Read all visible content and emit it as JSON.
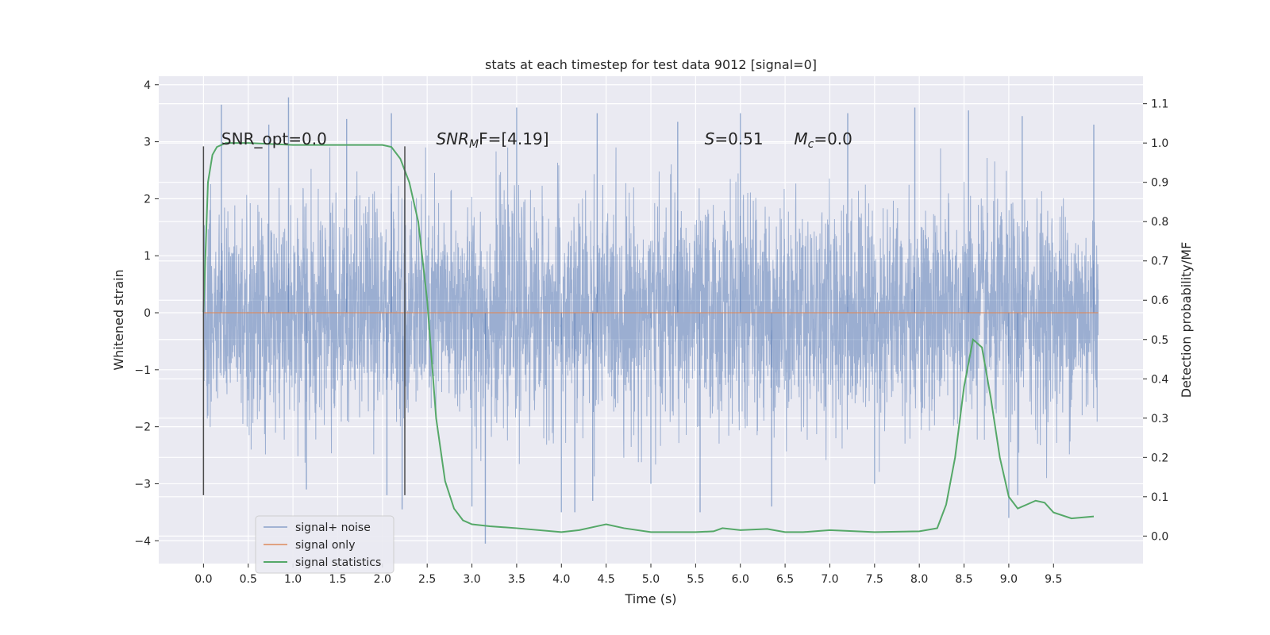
{
  "chart_data": {
    "type": "line",
    "title": "stats at each timestep for test data 9012 [signal=0]",
    "xlabel": "Time (s)",
    "ylabel": "Whitened strain",
    "y2label": "Detection probability/MF",
    "xlim": [
      -0.5,
      10.5
    ],
    "ylim": [
      -4.4,
      4.15
    ],
    "y2lim": [
      -0.07,
      1.17
    ],
    "xticks": [
      0.0,
      0.5,
      1.0,
      1.5,
      2.0,
      2.5,
      3.0,
      3.5,
      4.0,
      4.5,
      5.0,
      5.5,
      6.0,
      6.5,
      7.0,
      7.5,
      8.0,
      8.5,
      9.0,
      9.5
    ],
    "xtick_labels": [
      "0.0",
      "0.5",
      "1.0",
      "1.5",
      "2.0",
      "2.5",
      "3.0",
      "3.5",
      "4.0",
      "4.5",
      "5.0",
      "5.5",
      "6.0",
      "6.5",
      "7.0",
      "7.5",
      "8.0",
      "8.5",
      "9.0",
      "9.5"
    ],
    "yticks": [
      -4,
      -3,
      -2,
      -1,
      0,
      1,
      2,
      3,
      4
    ],
    "ytick_labels": [
      "−4",
      "−3",
      "−2",
      "−1",
      "0",
      "1",
      "2",
      "3",
      "4"
    ],
    "y2ticks": [
      0.0,
      0.1,
      0.2,
      0.3,
      0.4,
      0.5,
      0.6,
      0.7,
      0.8,
      0.9,
      1.0,
      1.1
    ],
    "y2tick_labels": [
      "0.0",
      "0.1",
      "0.2",
      "0.3",
      "0.4",
      "0.5",
      "0.6",
      "0.7",
      "0.8",
      "0.9",
      "1.0",
      "1.1"
    ],
    "grid": true,
    "legend_position": "lower-left",
    "annotations": [
      {
        "text": "SNR_opt=0.0",
        "x": 0.2,
        "y": 2.95
      },
      {
        "text": "SNR",
        "sub": "M",
        "tail": "F=[4.19]",
        "x": 2.6,
        "y": 2.95
      },
      {
        "text": "S",
        "sub": "",
        "tail": "=0.51",
        "x": 5.6,
        "y": 2.95
      },
      {
        "text": "M",
        "sub": "c",
        "tail": "=0.0",
        "x": 6.6,
        "y": 2.95
      }
    ],
    "vlines": [
      {
        "x": 0.0,
        "ymin": -3.2,
        "ymax": 2.92
      },
      {
        "x": 2.25,
        "ymin": -3.2,
        "ymax": 2.92
      }
    ],
    "series": [
      {
        "name": "signal+ noise",
        "axis": "left",
        "color": "#4c72b0",
        "kind": "noise",
        "x_range": [
          0.0,
          10.0
        ],
        "envelope": 1.0,
        "spikes": [
          [
            0.2,
            3.65
          ],
          [
            0.95,
            3.78
          ],
          [
            0.73,
            3.3
          ],
          [
            1.6,
            3.4
          ],
          [
            2.1,
            3.5
          ],
          [
            4.4,
            3.5
          ],
          [
            3.5,
            3.6
          ],
          [
            5.3,
            3.35
          ],
          [
            6.0,
            3.5
          ],
          [
            7.2,
            3.5
          ],
          [
            7.95,
            3.6
          ],
          [
            8.55,
            3.55
          ],
          [
            9.15,
            3.45
          ],
          [
            9.95,
            3.3
          ],
          [
            3.15,
            -4.05
          ],
          [
            3.0,
            -3.4
          ],
          [
            2.22,
            -3.45
          ],
          [
            4.0,
            -3.5
          ],
          [
            4.15,
            -3.5
          ],
          [
            5.55,
            -3.5
          ],
          [
            6.35,
            -3.4
          ],
          [
            9.0,
            -3.6
          ],
          [
            9.1,
            -3.2
          ],
          [
            1.15,
            -3.1
          ],
          [
            2.05,
            -3.2
          ],
          [
            4.35,
            -3.3
          ],
          [
            5.0,
            -3.0
          ],
          [
            7.5,
            -3.0
          ]
        ]
      },
      {
        "name": "signal only",
        "axis": "left",
        "color": "#dd8452",
        "x": [
          0.0,
          10.0
        ],
        "y": [
          0.0,
          0.0
        ]
      },
      {
        "name": "signal statistics",
        "axis": "right",
        "color": "#55a868",
        "x": [
          0.0,
          0.05,
          0.1,
          0.15,
          0.25,
          0.5,
          1.0,
          1.5,
          2.0,
          2.1,
          2.2,
          2.3,
          2.4,
          2.5,
          2.6,
          2.7,
          2.8,
          2.9,
          3.0,
          3.2,
          3.5,
          4.0,
          4.2,
          4.4,
          4.5,
          4.7,
          5.0,
          5.5,
          5.7,
          5.8,
          6.0,
          6.3,
          6.5,
          6.7,
          7.0,
          7.5,
          8.0,
          8.2,
          8.3,
          8.4,
          8.5,
          8.6,
          8.7,
          8.8,
          8.9,
          9.0,
          9.1,
          9.2,
          9.3,
          9.4,
          9.5,
          9.7,
          9.95
        ],
        "y": [
          0.57,
          0.9,
          0.97,
          0.99,
          1.0,
          1.0,
          0.995,
          0.995,
          0.995,
          0.99,
          0.96,
          0.9,
          0.8,
          0.6,
          0.3,
          0.14,
          0.07,
          0.04,
          0.03,
          0.025,
          0.02,
          0.01,
          0.015,
          0.025,
          0.03,
          0.02,
          0.01,
          0.01,
          0.012,
          0.02,
          0.015,
          0.018,
          0.01,
          0.01,
          0.015,
          0.01,
          0.012,
          0.02,
          0.08,
          0.2,
          0.38,
          0.5,
          0.48,
          0.35,
          0.2,
          0.1,
          0.07,
          0.08,
          0.09,
          0.085,
          0.06,
          0.045,
          0.05
        ]
      }
    ]
  }
}
